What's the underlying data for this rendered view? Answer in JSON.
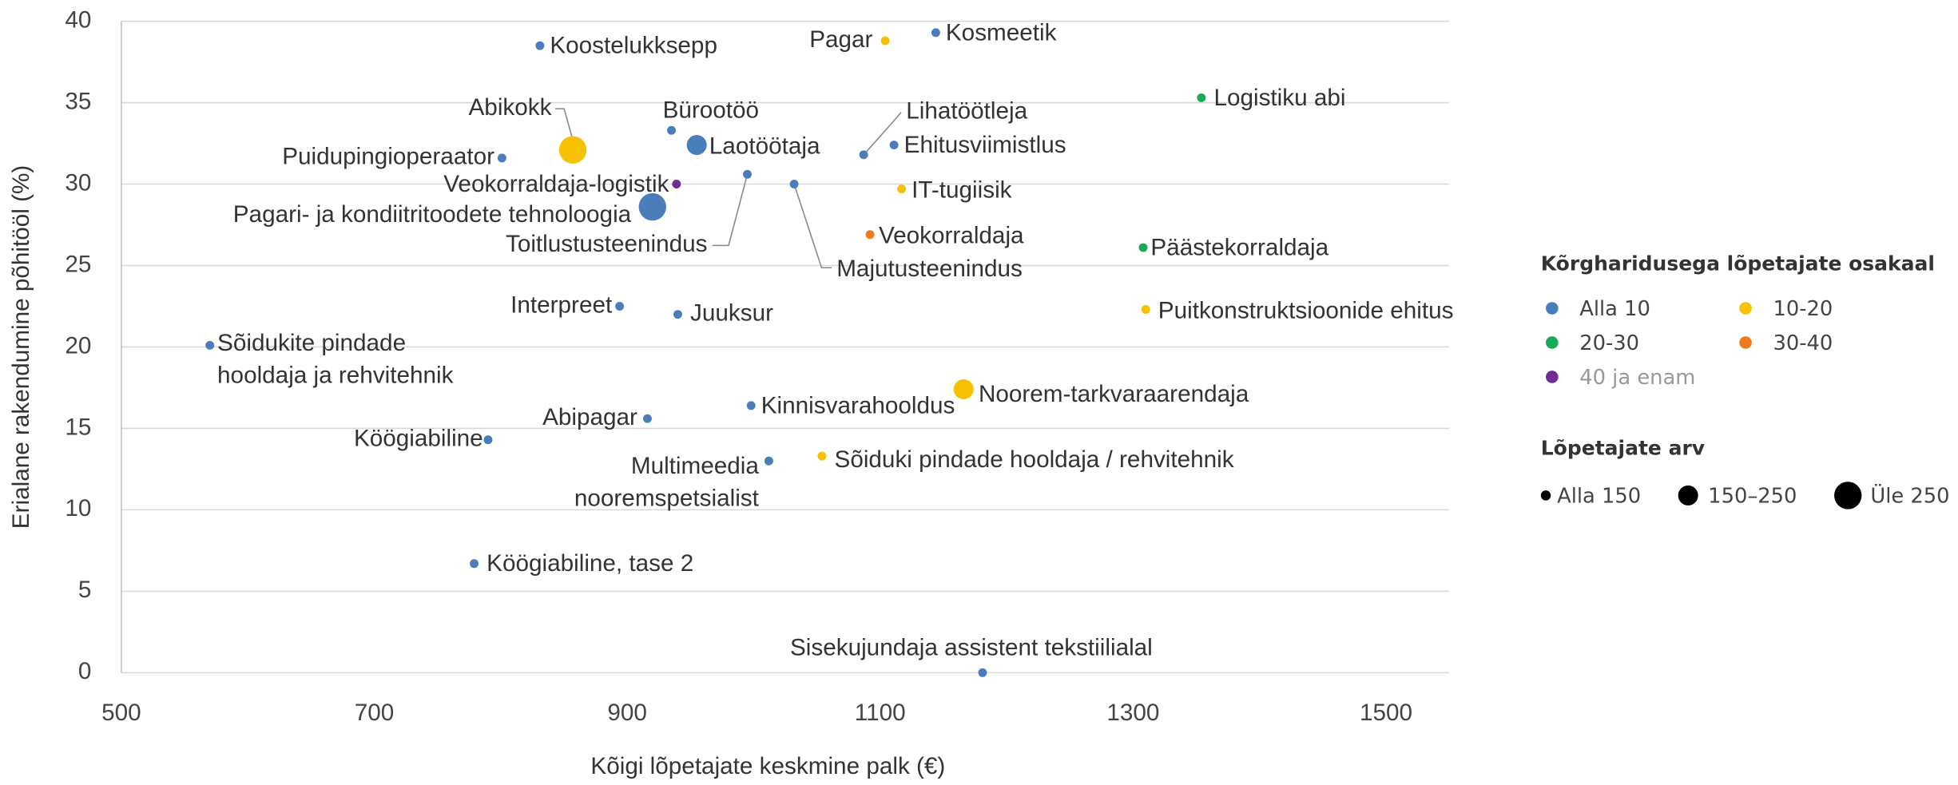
{
  "chart_data": {
    "type": "scatter",
    "x_label": "Kõigi lõpetajate keskmine palk (€)",
    "y_label": "Erialane rakendumine põhitööl (%)",
    "xlim": [
      500,
      1550
    ],
    "xticks": [
      500,
      700,
      900,
      1100,
      1300,
      1500
    ],
    "ylim": [
      0,
      40
    ],
    "yticks": [
      0,
      5,
      10,
      15,
      20,
      25,
      30,
      35,
      40
    ],
    "grid": true,
    "legend_title": "Kõrgharidusega lõpetajate osakaal",
    "size_title": "Lõpetajate arv",
    "size_legend": [
      "Alla 150",
      "150–250",
      "Üle 250"
    ],
    "series": [
      {
        "name": "Alla 10",
        "color": "#4a7ebb",
        "labels": [
          "Koostelukksepp",
          "Kosmeetik",
          "Bürootöö",
          "Laotöötaja",
          "Lihatöötleja",
          "Ehitusviimistlus",
          "Puidupingioperaator",
          "Pagari- ja kondiitritoodete tehnoloogia",
          "Toitlustusteenindus",
          "Majutusteenindus",
          "Interpreet",
          "Juuksur",
          "Sõidukite pindade hooldaja ja rehvitehnik",
          "Abipagar",
          "Kinnisvarahooldus",
          "Köögiabiline",
          "Multimeedia nooremspetsialist",
          "Köögiabiline, tase 2",
          "Sisekujundaja assistent tekstiilialal"
        ],
        "x": [
          831,
          1144,
          935,
          955,
          1087,
          1111,
          801,
          920,
          995,
          1032,
          894,
          940,
          570,
          916,
          998,
          790,
          1012,
          779,
          1181
        ],
        "values": [
          38.5,
          39.3,
          33.3,
          32.4,
          31.8,
          32.4,
          31.6,
          28.6,
          30.6,
          30.0,
          22.5,
          22.0,
          20.1,
          15.6,
          16.4,
          14.3,
          13.0,
          6.7,
          0
        ],
        "sizes": [
          "Alla 150",
          "Alla 150",
          "Alla 150",
          "150–250",
          "Alla 150",
          "Alla 150",
          "Alla 150",
          "Üle 250",
          "Alla 150",
          "Alla 150",
          "Alla 150",
          "Alla 150",
          "Alla 150",
          "Alla 150",
          "Alla 150",
          "Alla 150",
          "Alla 150",
          "Alla 150",
          "Alla 150"
        ]
      },
      {
        "name": "10-20",
        "color": "#f6c100",
        "labels": [
          "Pagar",
          "Abikokk",
          "IT-tugiisik",
          "Puitkonstruktsioonide ehitus",
          "Noorem-tarkvaraarendaja",
          "Sõiduki pindade hooldaja / rehvitehnik"
        ],
        "x": [
          1104,
          857,
          1117,
          1310,
          1166,
          1054
        ],
        "values": [
          38.8,
          32.1,
          29.7,
          22.3,
          17.4,
          13.3
        ],
        "sizes": [
          "Alla 150",
          "Üle 250",
          "Alla 150",
          "Alla 150",
          "150–250",
          "Alla 150"
        ]
      },
      {
        "name": "20-30",
        "color": "#1aaa55",
        "labels": [
          "Logistiku abi",
          "Päästekorraldaja"
        ],
        "x": [
          1354,
          1308
        ],
        "values": [
          35.3,
          26.1
        ],
        "sizes": [
          "Alla 150",
          "Alla 150"
        ]
      },
      {
        "name": "30-40",
        "color": "#f07a20",
        "labels": [
          "Veokorraldaja"
        ],
        "x": [
          1092
        ],
        "values": [
          26.9
        ],
        "sizes": [
          "Alla 150"
        ]
      },
      {
        "name": "40 ja enam",
        "color": "#702c91",
        "labels": [
          "Veokorraldaja-logistik"
        ],
        "x": [
          939
        ],
        "values": [
          30.0
        ],
        "sizes": [
          "Alla 150"
        ]
      }
    ]
  }
}
